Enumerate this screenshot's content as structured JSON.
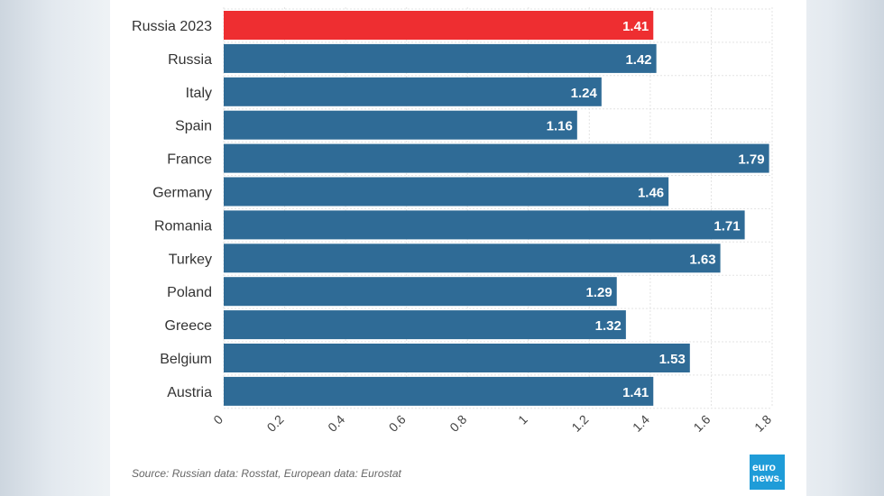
{
  "chart_data": {
    "type": "bar",
    "orientation": "horizontal",
    "categories": [
      "Russia 2023",
      "Russia",
      "Italy",
      "Spain",
      "France",
      "Germany",
      "Romania",
      "Turkey",
      "Poland",
      "Greece",
      "Belgium",
      "Austria"
    ],
    "values": [
      1.41,
      1.42,
      1.24,
      1.16,
      1.79,
      1.46,
      1.71,
      1.63,
      1.29,
      1.32,
      1.53,
      1.41
    ],
    "value_labels": [
      "1.41",
      "1.42",
      "1.24",
      "1.16",
      "1.79",
      "1.46",
      "1.71",
      "1.63",
      "1.29",
      "1.32",
      "1.53",
      "1.41"
    ],
    "bar_colors": [
      "#ee2e31",
      "#2f6b96",
      "#2f6b96",
      "#2f6b96",
      "#2f6b96",
      "#2f6b96",
      "#2f6b96",
      "#2f6b96",
      "#2f6b96",
      "#2f6b96",
      "#2f6b96",
      "#2f6b96"
    ],
    "xlim": [
      0,
      1.8
    ],
    "ticks": [
      0,
      0.2,
      0.4,
      0.6,
      0.8,
      1,
      1.2,
      1.4,
      1.6,
      1.8
    ],
    "tick_labels": [
      "0",
      "0.2",
      "0.4",
      "0.6",
      "0.8",
      "1",
      "1.2",
      "1.4",
      "1.6",
      "1.8"
    ],
    "grid": true,
    "title": "",
    "xlabel": "",
    "ylabel": ""
  },
  "source": "Source: Russian data: Rosstat, European data: Eurostat",
  "logo": {
    "line1": "euro",
    "line2": "news."
  }
}
